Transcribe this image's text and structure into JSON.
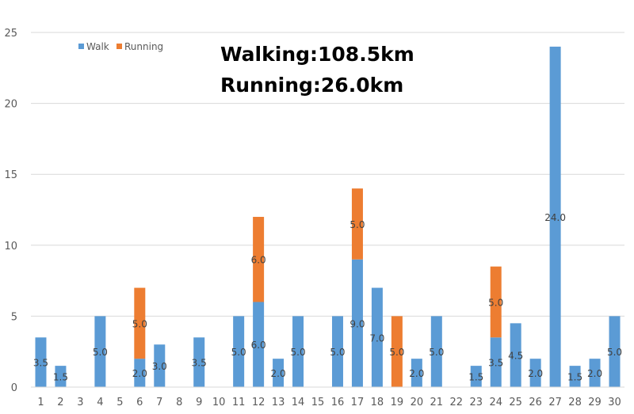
{
  "summary": {
    "walking": "Walking:108.5km",
    "running": "Running:26.0km"
  },
  "colors": {
    "walk": "#5B9BD5",
    "running": "#ED7D31",
    "grid": "#d9d9d9"
  },
  "chart_data": {
    "type": "bar",
    "stacked": true,
    "categories": [
      "1",
      "2",
      "3",
      "4",
      "5",
      "6",
      "7",
      "8",
      "9",
      "10",
      "11",
      "12",
      "13",
      "14",
      "15",
      "16",
      "17",
      "18",
      "19",
      "20",
      "21",
      "22",
      "23",
      "24",
      "25",
      "26",
      "27",
      "28",
      "29",
      "30"
    ],
    "series": [
      {
        "name": "Walk",
        "values": [
          3.5,
          1.5,
          0,
          5.0,
          0,
          2.0,
          3.0,
          0,
          3.5,
          0,
          5.0,
          6.0,
          2.0,
          5.0,
          0,
          5.0,
          9.0,
          7.0,
          0,
          2.0,
          5.0,
          0,
          1.5,
          3.5,
          4.5,
          2.0,
          24.0,
          1.5,
          2.0,
          5.0
        ]
      },
      {
        "name": "Running",
        "values": [
          0,
          0,
          0,
          0,
          0,
          5.0,
          0,
          0,
          0,
          0,
          0,
          6.0,
          0,
          0,
          0,
          0,
          5.0,
          0,
          5.0,
          0,
          0,
          0,
          0,
          5.0,
          0,
          0,
          0,
          0,
          0,
          0
        ]
      }
    ],
    "ylim": [
      0,
      25
    ],
    "yticks": [
      "0",
      "5",
      "10",
      "15",
      "20",
      "25"
    ],
    "grid": true,
    "legend": "top-left"
  }
}
